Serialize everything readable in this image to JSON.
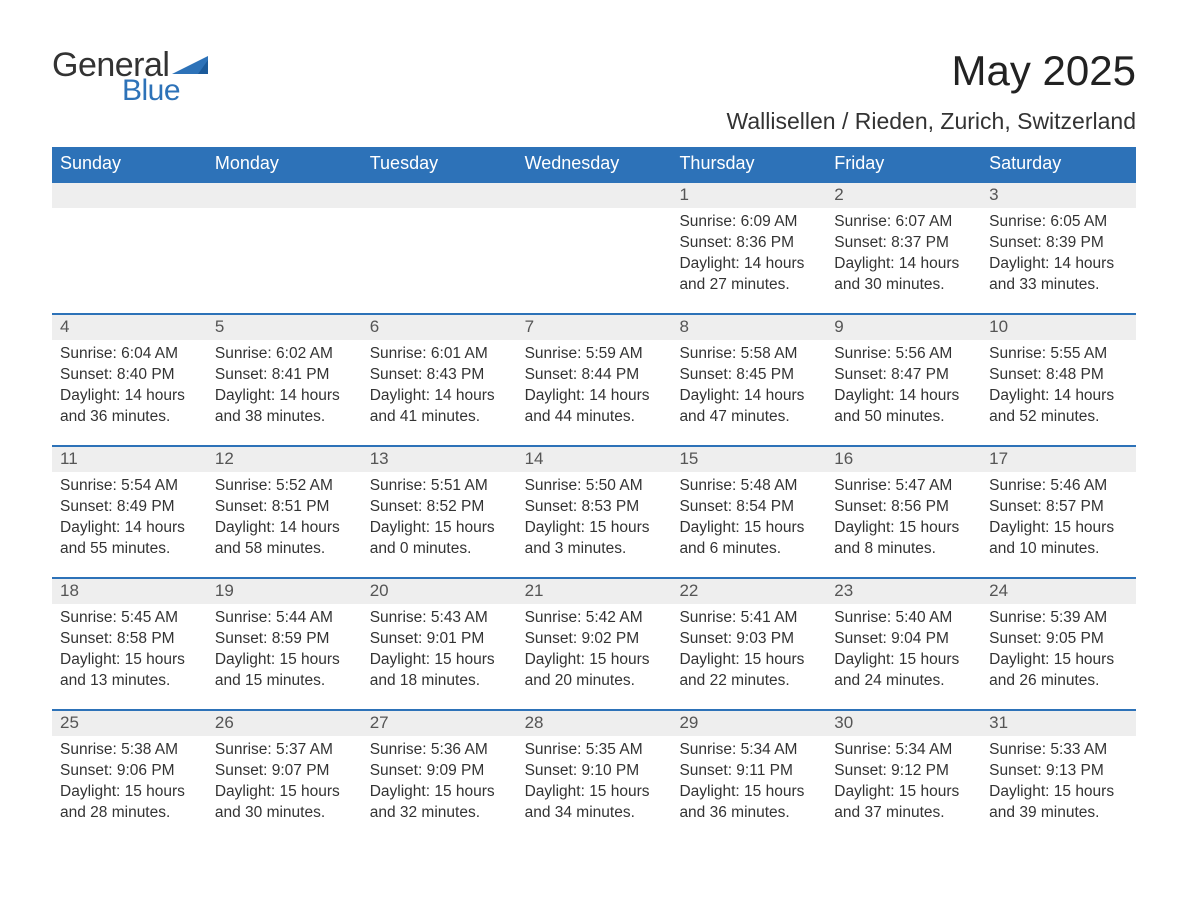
{
  "brand": {
    "word1": "General",
    "word2": "Blue",
    "tri_color": "#2d72b8"
  },
  "title": "May 2025",
  "location": "Wallisellen / Rieden, Zurich, Switzerland",
  "colors": {
    "header_bg": "#2d72b8",
    "header_text": "#ffffff",
    "strip_bg": "#eeeeee",
    "strip_border": "#2d72b8",
    "body_text": "#333333",
    "daynum_text": "#555555",
    "page_bg": "#ffffff"
  },
  "weekdays": [
    "Sunday",
    "Monday",
    "Tuesday",
    "Wednesday",
    "Thursday",
    "Friday",
    "Saturday"
  ],
  "weeks": [
    [
      null,
      null,
      null,
      null,
      {
        "n": "1",
        "sunrise": "6:09 AM",
        "sunset": "8:36 PM",
        "daylight": "14 hours and 27 minutes."
      },
      {
        "n": "2",
        "sunrise": "6:07 AM",
        "sunset": "8:37 PM",
        "daylight": "14 hours and 30 minutes."
      },
      {
        "n": "3",
        "sunrise": "6:05 AM",
        "sunset": "8:39 PM",
        "daylight": "14 hours and 33 minutes."
      }
    ],
    [
      {
        "n": "4",
        "sunrise": "6:04 AM",
        "sunset": "8:40 PM",
        "daylight": "14 hours and 36 minutes."
      },
      {
        "n": "5",
        "sunrise": "6:02 AM",
        "sunset": "8:41 PM",
        "daylight": "14 hours and 38 minutes."
      },
      {
        "n": "6",
        "sunrise": "6:01 AM",
        "sunset": "8:43 PM",
        "daylight": "14 hours and 41 minutes."
      },
      {
        "n": "7",
        "sunrise": "5:59 AM",
        "sunset": "8:44 PM",
        "daylight": "14 hours and 44 minutes."
      },
      {
        "n": "8",
        "sunrise": "5:58 AM",
        "sunset": "8:45 PM",
        "daylight": "14 hours and 47 minutes."
      },
      {
        "n": "9",
        "sunrise": "5:56 AM",
        "sunset": "8:47 PM",
        "daylight": "14 hours and 50 minutes."
      },
      {
        "n": "10",
        "sunrise": "5:55 AM",
        "sunset": "8:48 PM",
        "daylight": "14 hours and 52 minutes."
      }
    ],
    [
      {
        "n": "11",
        "sunrise": "5:54 AM",
        "sunset": "8:49 PM",
        "daylight": "14 hours and 55 minutes."
      },
      {
        "n": "12",
        "sunrise": "5:52 AM",
        "sunset": "8:51 PM",
        "daylight": "14 hours and 58 minutes."
      },
      {
        "n": "13",
        "sunrise": "5:51 AM",
        "sunset": "8:52 PM",
        "daylight": "15 hours and 0 minutes."
      },
      {
        "n": "14",
        "sunrise": "5:50 AM",
        "sunset": "8:53 PM",
        "daylight": "15 hours and 3 minutes."
      },
      {
        "n": "15",
        "sunrise": "5:48 AM",
        "sunset": "8:54 PM",
        "daylight": "15 hours and 6 minutes."
      },
      {
        "n": "16",
        "sunrise": "5:47 AM",
        "sunset": "8:56 PM",
        "daylight": "15 hours and 8 minutes."
      },
      {
        "n": "17",
        "sunrise": "5:46 AM",
        "sunset": "8:57 PM",
        "daylight": "15 hours and 10 minutes."
      }
    ],
    [
      {
        "n": "18",
        "sunrise": "5:45 AM",
        "sunset": "8:58 PM",
        "daylight": "15 hours and 13 minutes."
      },
      {
        "n": "19",
        "sunrise": "5:44 AM",
        "sunset": "8:59 PM",
        "daylight": "15 hours and 15 minutes."
      },
      {
        "n": "20",
        "sunrise": "5:43 AM",
        "sunset": "9:01 PM",
        "daylight": "15 hours and 18 minutes."
      },
      {
        "n": "21",
        "sunrise": "5:42 AM",
        "sunset": "9:02 PM",
        "daylight": "15 hours and 20 minutes."
      },
      {
        "n": "22",
        "sunrise": "5:41 AM",
        "sunset": "9:03 PM",
        "daylight": "15 hours and 22 minutes."
      },
      {
        "n": "23",
        "sunrise": "5:40 AM",
        "sunset": "9:04 PM",
        "daylight": "15 hours and 24 minutes."
      },
      {
        "n": "24",
        "sunrise": "5:39 AM",
        "sunset": "9:05 PM",
        "daylight": "15 hours and 26 minutes."
      }
    ],
    [
      {
        "n": "25",
        "sunrise": "5:38 AM",
        "sunset": "9:06 PM",
        "daylight": "15 hours and 28 minutes."
      },
      {
        "n": "26",
        "sunrise": "5:37 AM",
        "sunset": "9:07 PM",
        "daylight": "15 hours and 30 minutes."
      },
      {
        "n": "27",
        "sunrise": "5:36 AM",
        "sunset": "9:09 PM",
        "daylight": "15 hours and 32 minutes."
      },
      {
        "n": "28",
        "sunrise": "5:35 AM",
        "sunset": "9:10 PM",
        "daylight": "15 hours and 34 minutes."
      },
      {
        "n": "29",
        "sunrise": "5:34 AM",
        "sunset": "9:11 PM",
        "daylight": "15 hours and 36 minutes."
      },
      {
        "n": "30",
        "sunrise": "5:34 AM",
        "sunset": "9:12 PM",
        "daylight": "15 hours and 37 minutes."
      },
      {
        "n": "31",
        "sunrise": "5:33 AM",
        "sunset": "9:13 PM",
        "daylight": "15 hours and 39 minutes."
      }
    ]
  ],
  "labels": {
    "sunrise": "Sunrise:",
    "sunset": "Sunset:",
    "daylight": "Daylight:"
  }
}
